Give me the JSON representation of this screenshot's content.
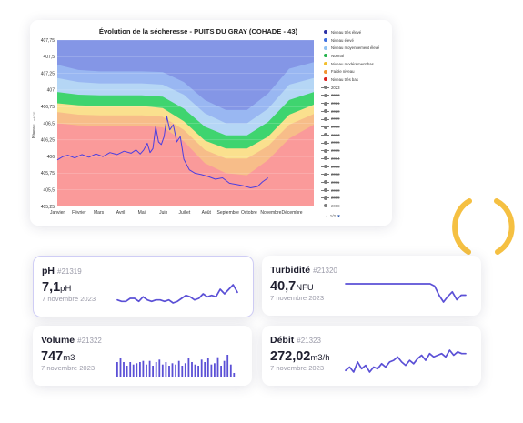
{
  "colors": {
    "line": "#4b3ee0",
    "sparkline": "#5b50d6",
    "logo": "#f5c042",
    "card_border_active": "#cfcdf5"
  },
  "chart_data": {
    "type": "area",
    "title": "Évolution de la sécheresse - PUITS DU GRAY (COHADE - 43)",
    "ylabel": "Niveau",
    "ylabel_unit": "mNGF",
    "ylim": [
      405.25,
      407.75
    ],
    "yticks": [
      "405,25",
      "405,5",
      "405,75",
      "406",
      "406,25",
      "406,5",
      "406,75",
      "407",
      "407,25",
      "407,5",
      "407,75"
    ],
    "xlim": [
      0,
      365
    ],
    "xticks": [
      {
        "label": "Janvier",
        "day": 0
      },
      {
        "label": "Février",
        "day": 31
      },
      {
        "label": "Mars",
        "day": 59
      },
      {
        "label": "Avril",
        "day": 90
      },
      {
        "label": "Mai",
        "day": 120
      },
      {
        "label": "Juin",
        "day": 151
      },
      {
        "label": "Juillet",
        "day": 181
      },
      {
        "label": "Août",
        "day": 212
      },
      {
        "label": "Septembre",
        "day": 243
      },
      {
        "label": "Octobre",
        "day": 273
      },
      {
        "label": "Novembre",
        "day": 304
      },
      {
        "label": "Décembre",
        "day": 334
      }
    ],
    "bands_x": [
      0,
      30,
      60,
      90,
      120,
      150,
      180,
      210,
      240,
      270,
      300,
      330,
      365
    ],
    "bands": [
      {
        "name": "Niveau très élevé",
        "color": "#8496e6",
        "upper": [
          407.75,
          407.75,
          407.75,
          407.75,
          407.75,
          407.75,
          407.75,
          407.75,
          407.75,
          407.75,
          407.75,
          407.75,
          407.75
        ]
      },
      {
        "name": "Niveau élevé",
        "color": "#99b7f2",
        "upper": [
          407.38,
          407.3,
          407.28,
          407.28,
          407.28,
          407.27,
          407.12,
          406.85,
          406.7,
          406.7,
          406.95,
          407.32,
          407.42
        ]
      },
      {
        "name": "Niveau moyennement élevé",
        "color": "#b5d6f5",
        "upper": [
          407.18,
          407.12,
          407.1,
          407.1,
          407.1,
          407.08,
          406.93,
          406.65,
          406.5,
          406.5,
          406.72,
          407.08,
          407.18
        ]
      },
      {
        "name": "Normal",
        "color": "#3fd46f",
        "upper": [
          406.97,
          406.93,
          406.92,
          406.92,
          406.92,
          406.9,
          406.72,
          406.45,
          406.32,
          406.32,
          406.52,
          406.85,
          406.97
        ]
      },
      {
        "name": "Niveau modérément bas",
        "color": "#fae08e",
        "upper": [
          406.8,
          406.77,
          406.76,
          406.76,
          406.76,
          406.73,
          406.53,
          406.24,
          406.12,
          406.12,
          406.3,
          406.63,
          406.78
        ]
      },
      {
        "name": "Faible niveau",
        "color": "#f7bd89",
        "upper": [
          406.67,
          406.63,
          406.62,
          406.62,
          406.62,
          406.6,
          406.4,
          406.1,
          405.97,
          405.97,
          406.16,
          406.48,
          406.64
        ]
      },
      {
        "name": "Niveau très bas",
        "color": "#fa9a9a",
        "upper": [
          406.5,
          406.47,
          406.46,
          406.46,
          406.46,
          406.44,
          406.23,
          405.9,
          405.75,
          405.72,
          405.95,
          406.27,
          406.48
        ]
      }
    ],
    "series": [
      {
        "name": "2023",
        "color": "#4b3ee0",
        "x": [
          0,
          8,
          15,
          25,
          35,
          45,
          55,
          65,
          75,
          85,
          95,
          105,
          112,
          118,
          123,
          128,
          132,
          136,
          140,
          144,
          148,
          152,
          156,
          160,
          165,
          170,
          175,
          180,
          188,
          196,
          205,
          215,
          225,
          235,
          245,
          255,
          265,
          275,
          285,
          292,
          300
        ],
        "y": [
          405.95,
          406.0,
          406.02,
          405.98,
          406.03,
          405.99,
          406.04,
          406.0,
          406.06,
          406.03,
          406.08,
          406.05,
          406.1,
          406.04,
          406.1,
          406.2,
          406.06,
          406.12,
          406.45,
          406.22,
          406.18,
          406.3,
          406.6,
          406.4,
          406.48,
          406.22,
          406.3,
          405.96,
          405.8,
          405.75,
          405.73,
          405.7,
          405.66,
          405.68,
          405.6,
          405.58,
          405.56,
          405.53,
          405.55,
          405.62,
          405.68
        ]
      }
    ]
  },
  "legend": [
    {
      "label": "Niveau très élevé",
      "color": "#2b30a6",
      "type": "dot",
      "active": true
    },
    {
      "label": "Niveau élevé",
      "color": "#3d6fe0",
      "type": "dot",
      "active": true
    },
    {
      "label": "Niveau moyennement élevé",
      "color": "#8fc2f2",
      "type": "dot",
      "active": true
    },
    {
      "label": "Normal",
      "color": "#22b24a",
      "type": "dot",
      "active": true
    },
    {
      "label": "Niveau modérément bas",
      "color": "#f2bf2e",
      "type": "dot",
      "active": true
    },
    {
      "label": "Faible niveau",
      "color": "#f29430",
      "type": "dot",
      "active": true
    },
    {
      "label": "Niveau très bas",
      "color": "#dc2020",
      "type": "dot",
      "active": true
    },
    {
      "label": "2023",
      "color": "#4b3ee0",
      "type": "line",
      "active": true
    },
    {
      "label": "2022",
      "type": "line",
      "active": false
    },
    {
      "label": "2021",
      "type": "line",
      "active": false
    },
    {
      "label": "2020",
      "type": "line",
      "active": false
    },
    {
      "label": "2019",
      "type": "line",
      "active": false
    },
    {
      "label": "2018",
      "type": "line",
      "active": false
    },
    {
      "label": "2017",
      "type": "line",
      "active": false
    },
    {
      "label": "2016",
      "type": "line",
      "active": false
    },
    {
      "label": "2015",
      "type": "line",
      "active": false
    },
    {
      "label": "2014",
      "type": "line",
      "active": false
    },
    {
      "label": "2013",
      "type": "line",
      "active": false
    },
    {
      "label": "2012",
      "type": "line",
      "active": false
    },
    {
      "label": "2011",
      "type": "line",
      "active": false
    },
    {
      "label": "2010",
      "type": "line",
      "active": false
    },
    {
      "label": "2009",
      "type": "line",
      "active": false
    },
    {
      "label": "2008",
      "type": "line",
      "active": false
    }
  ],
  "legend_pager": {
    "up": "▲",
    "text": "1/2",
    "down": "▼"
  },
  "metrics": {
    "ph": {
      "title": "pH",
      "id": "#21319",
      "value": "7,1",
      "unit": "pH",
      "date": "7 novembre 2023",
      "spark": [
        5,
        4,
        4,
        6,
        6,
        4,
        7,
        5,
        4,
        5,
        5,
        4,
        5,
        3,
        4,
        6,
        8,
        7,
        5,
        6,
        9,
        7,
        8,
        7,
        12,
        9,
        12,
        15,
        10
      ]
    },
    "turbidite": {
      "title": "Turbidité",
      "id": "#21320",
      "value": "40,7",
      "unit": "NFU",
      "date": "7 novembre 2023",
      "spark": [
        20,
        20,
        20,
        20,
        20,
        20,
        20,
        20,
        20,
        20,
        20,
        20,
        20,
        20,
        20,
        20,
        20,
        20,
        20,
        20,
        18,
        10,
        4,
        9,
        13,
        6,
        10,
        10
      ]
    },
    "volume": {
      "title": "Volume",
      "id": "#21322",
      "value": "747",
      "unit": "m3",
      "date": "7 novembre 2023",
      "spark": [
        12,
        15,
        12,
        9,
        12,
        10,
        11,
        12,
        13,
        10,
        13,
        9,
        12,
        14,
        10,
        12,
        9,
        11,
        10,
        13,
        9,
        11,
        15,
        12,
        10,
        9,
        14,
        12,
        15,
        10,
        11,
        16,
        9,
        13,
        18,
        10,
        3
      ]
    },
    "debit": {
      "title": "Débit",
      "id": "#21323",
      "value": "272,02",
      "unit": "m3/h",
      "date": "7 novembre 2023",
      "spark": [
        7,
        9,
        6,
        12,
        8,
        10,
        6,
        9,
        8,
        11,
        9,
        12,
        13,
        15,
        12,
        10,
        13,
        11,
        14,
        16,
        13,
        17,
        15,
        16,
        17,
        15,
        19,
        16,
        18,
        17,
        17
      ]
    }
  }
}
